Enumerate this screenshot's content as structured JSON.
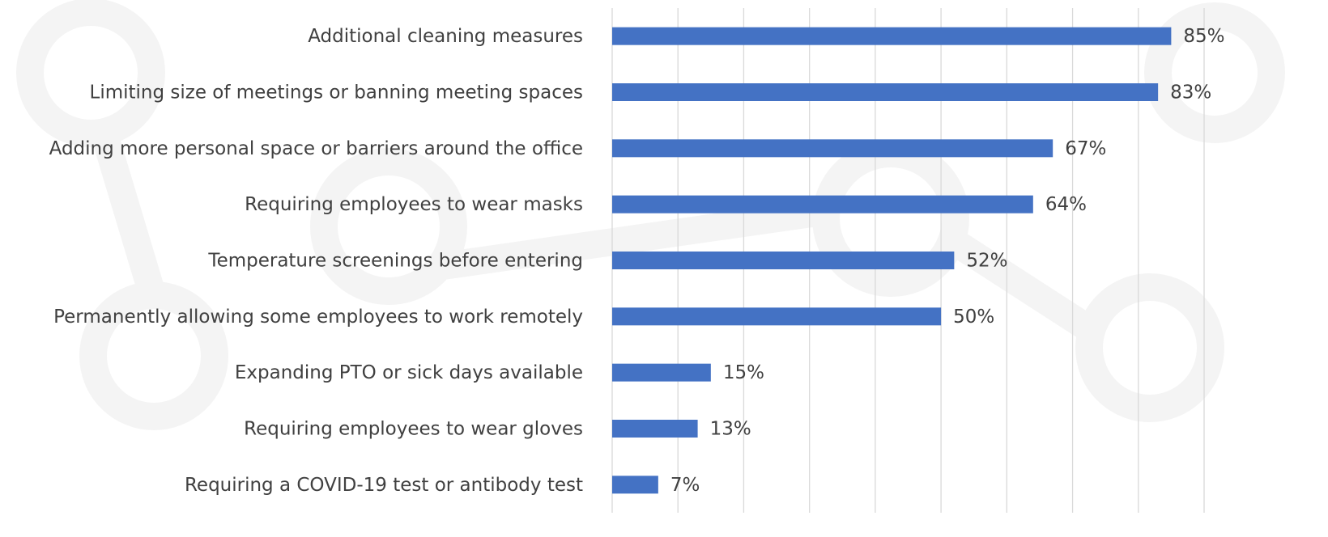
{
  "chart_data": {
    "type": "barh",
    "categories": [
      "Additional cleaning measures",
      "Limiting size of meetings or banning meeting spaces",
      "Adding more personal space or barriers around the office",
      "Requiring employees to wear masks",
      "Temperature screenings before entering",
      "Permanently allowing some employees to work remotely",
      "Expanding PTO or sick days available",
      "Requiring employees to wear gloves",
      "Requiring a COVID-19 test or antibody test"
    ],
    "values": [
      85,
      83,
      67,
      64,
      52,
      50,
      15,
      13,
      7
    ],
    "value_labels": [
      "85%",
      "83%",
      "67%",
      "64%",
      "52%",
      "50%",
      "15%",
      "13%",
      "7%"
    ],
    "color": "#4472c4",
    "xlim": [
      0,
      90
    ],
    "xticks": [
      0,
      10,
      20,
      30,
      40,
      50,
      60,
      70,
      80,
      90
    ],
    "grid": true
  }
}
